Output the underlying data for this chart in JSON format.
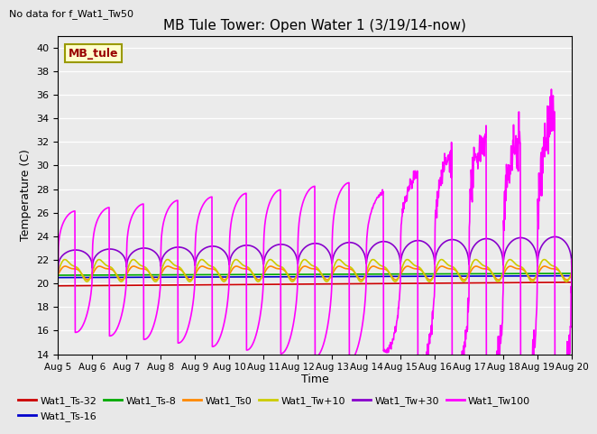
{
  "title": "MB Tule Tower: Open Water 1 (3/19/14-now)",
  "subtitle": "No data for f_Wat1_Tw50",
  "xlabel": "Time",
  "ylabel": "Temperature (C)",
  "ylim": [
    14,
    41
  ],
  "yticks": [
    14,
    16,
    18,
    20,
    22,
    24,
    26,
    28,
    30,
    32,
    34,
    36,
    38,
    40
  ],
  "xtick_labels": [
    "Aug 5",
    "Aug 6",
    "Aug 7",
    "Aug 8",
    "Aug 9",
    "Aug 10",
    "Aug 11",
    "Aug 12",
    "Aug 13",
    "Aug 14",
    "Aug 15",
    "Aug 16",
    "Aug 17",
    "Aug 18",
    "Aug 19",
    "Aug 20"
  ],
  "legend_label": "MB_tule",
  "series": {
    "Wat1_Ts-32": {
      "color": "#cc0000",
      "lw": 1.2
    },
    "Wat1_Ts-16": {
      "color": "#0000cc",
      "lw": 1.2
    },
    "Wat1_Ts-8": {
      "color": "#00aa00",
      "lw": 1.2
    },
    "Wat1_Ts0": {
      "color": "#ff8800",
      "lw": 1.2
    },
    "Wat1_Tw+10": {
      "color": "#cccc00",
      "lw": 1.2
    },
    "Wat1_Tw+30": {
      "color": "#8800cc",
      "lw": 1.2
    },
    "Wat1_Tw100": {
      "color": "#ff00ff",
      "lw": 1.2
    }
  },
  "bg_color": "#e8e8e8",
  "plot_bg": "#ebebeb"
}
